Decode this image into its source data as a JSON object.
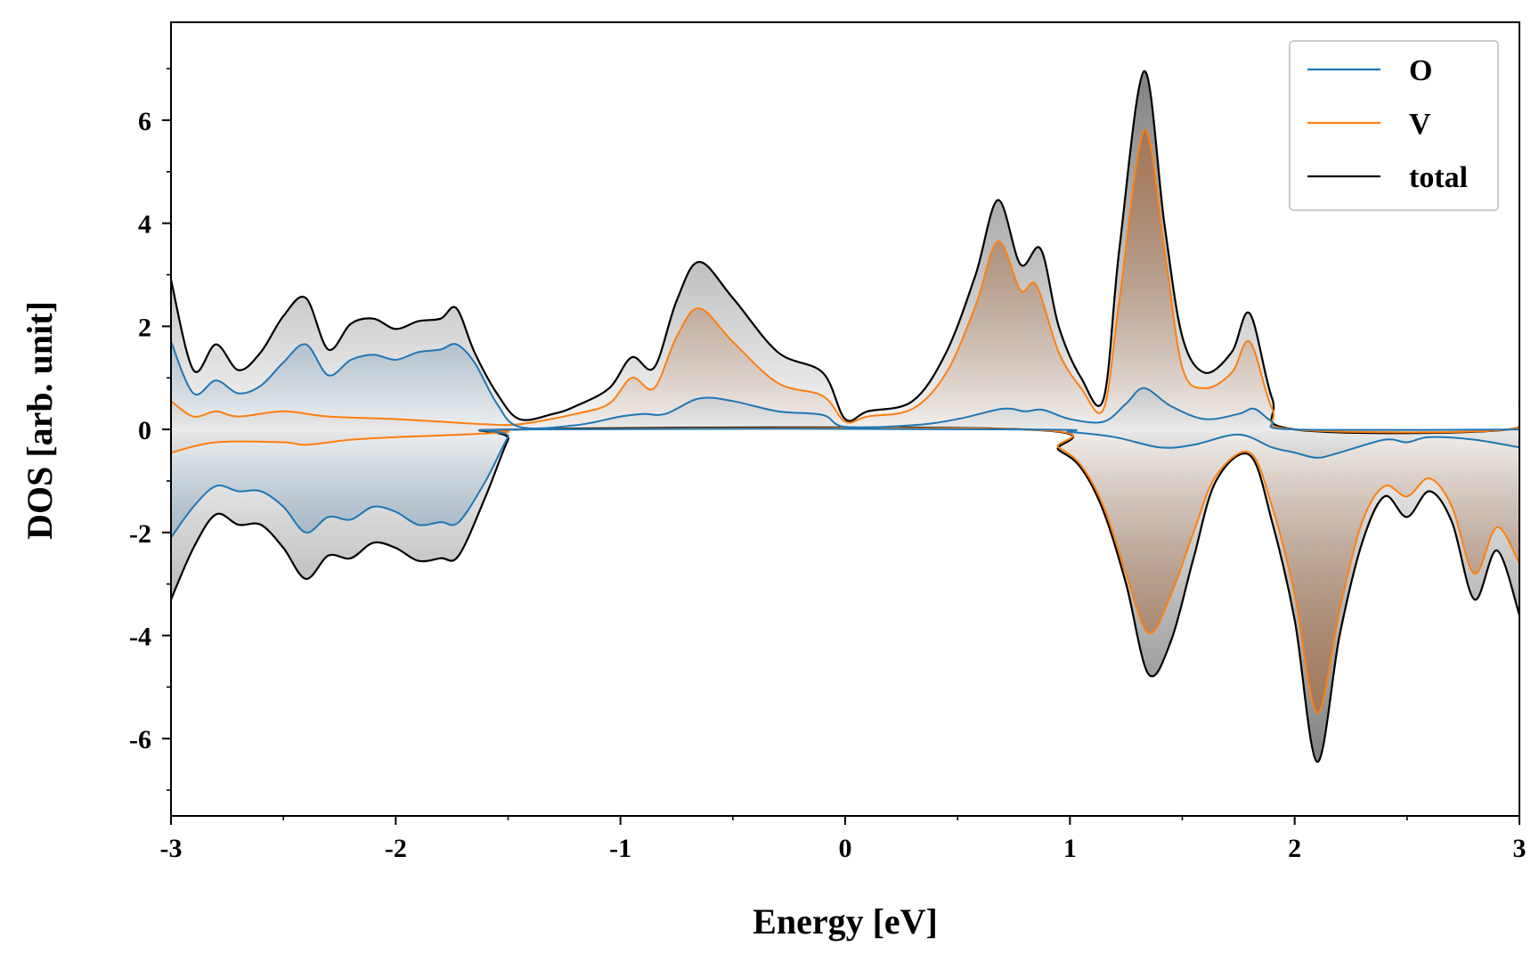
{
  "chart_data": {
    "type": "area",
    "xlabel": "Energy [eV]",
    "ylabel": "DOS [arb. unit]",
    "xlim": [
      -3,
      3
    ],
    "ylim": [
      -7.5,
      7.9
    ],
    "xticks": [
      -3,
      -2,
      -1,
      0,
      1,
      2,
      3
    ],
    "yticks": [
      -6,
      -4,
      -2,
      0,
      2,
      4,
      6
    ],
    "xtick_labels": [
      "-3",
      "-2",
      "-1",
      "0",
      "1",
      "2",
      "3"
    ],
    "ytick_labels": [
      "-6",
      "-4",
      "-2",
      "0",
      "2",
      "4",
      "6"
    ],
    "legend_position": "top-right",
    "grid": false,
    "series": [
      {
        "name": "O",
        "color": "#1f77b4",
        "fill_color": "#4a7fa8",
        "spin_up": [
          [
            -3.0,
            1.7
          ],
          [
            -2.9,
            0.7
          ],
          [
            -2.8,
            0.95
          ],
          [
            -2.7,
            0.7
          ],
          [
            -2.6,
            0.85
          ],
          [
            -2.5,
            1.3
          ],
          [
            -2.4,
            1.65
          ],
          [
            -2.3,
            1.05
          ],
          [
            -2.2,
            1.35
          ],
          [
            -2.1,
            1.45
          ],
          [
            -2.0,
            1.35
          ],
          [
            -1.9,
            1.5
          ],
          [
            -1.8,
            1.55
          ],
          [
            -1.73,
            1.65
          ],
          [
            -1.65,
            1.3
          ],
          [
            -1.55,
            0.5
          ],
          [
            -1.45,
            0.05
          ],
          [
            -1.2,
            0.08
          ],
          [
            -1.0,
            0.25
          ],
          [
            -0.9,
            0.3
          ],
          [
            -0.8,
            0.3
          ],
          [
            -0.65,
            0.6
          ],
          [
            -0.5,
            0.55
          ],
          [
            -0.3,
            0.35
          ],
          [
            -0.1,
            0.28
          ],
          [
            0.0,
            0.05
          ],
          [
            0.3,
            0.08
          ],
          [
            0.5,
            0.2
          ],
          [
            0.7,
            0.4
          ],
          [
            0.8,
            0.35
          ],
          [
            0.88,
            0.38
          ],
          [
            1.0,
            0.2
          ],
          [
            1.15,
            0.15
          ],
          [
            1.25,
            0.5
          ],
          [
            1.33,
            0.8
          ],
          [
            1.45,
            0.45
          ],
          [
            1.6,
            0.2
          ],
          [
            1.75,
            0.3
          ],
          [
            1.82,
            0.4
          ],
          [
            1.9,
            0.15
          ],
          [
            2.0,
            0.0
          ],
          [
            3.0,
            0.0
          ]
        ],
        "spin_down": [
          [
            -3.0,
            -2.1
          ],
          [
            -2.9,
            -1.5
          ],
          [
            -2.8,
            -1.1
          ],
          [
            -2.7,
            -1.2
          ],
          [
            -2.6,
            -1.2
          ],
          [
            -2.5,
            -1.5
          ],
          [
            -2.4,
            -2.0
          ],
          [
            -2.3,
            -1.7
          ],
          [
            -2.2,
            -1.75
          ],
          [
            -2.1,
            -1.5
          ],
          [
            -2.0,
            -1.6
          ],
          [
            -1.9,
            -1.85
          ],
          [
            -1.8,
            -1.8
          ],
          [
            -1.72,
            -1.8
          ],
          [
            -1.6,
            -1.0
          ],
          [
            -1.5,
            -0.15
          ],
          [
            -1.45,
            0.0
          ],
          [
            0.8,
            0.0
          ],
          [
            1.0,
            -0.05
          ],
          [
            1.2,
            -0.15
          ],
          [
            1.4,
            -0.35
          ],
          [
            1.55,
            -0.3
          ],
          [
            1.75,
            -0.1
          ],
          [
            1.9,
            -0.35
          ],
          [
            2.0,
            -0.45
          ],
          [
            2.1,
            -0.55
          ],
          [
            2.2,
            -0.45
          ],
          [
            2.4,
            -0.2
          ],
          [
            2.5,
            -0.25
          ],
          [
            2.6,
            -0.15
          ],
          [
            2.8,
            -0.2
          ],
          [
            3.0,
            -0.35
          ]
        ]
      },
      {
        "name": "V",
        "color": "#ff7f0e",
        "fill_color": "#a9704a",
        "spin_up": [
          [
            -3.0,
            0.55
          ],
          [
            -2.9,
            0.25
          ],
          [
            -2.8,
            0.35
          ],
          [
            -2.7,
            0.25
          ],
          [
            -2.5,
            0.35
          ],
          [
            -2.3,
            0.25
          ],
          [
            -2.0,
            0.2
          ],
          [
            -1.8,
            0.15
          ],
          [
            -1.6,
            0.1
          ],
          [
            -1.45,
            0.1
          ],
          [
            -1.2,
            0.3
          ],
          [
            -1.05,
            0.5
          ],
          [
            -0.95,
            1.0
          ],
          [
            -0.85,
            0.8
          ],
          [
            -0.75,
            1.8
          ],
          [
            -0.65,
            2.35
          ],
          [
            -0.5,
            1.7
          ],
          [
            -0.3,
            0.9
          ],
          [
            -0.1,
            0.65
          ],
          [
            0.0,
            0.15
          ],
          [
            0.1,
            0.25
          ],
          [
            0.3,
            0.4
          ],
          [
            0.45,
            1.1
          ],
          [
            0.58,
            2.4
          ],
          [
            0.68,
            3.65
          ],
          [
            0.78,
            2.7
          ],
          [
            0.85,
            2.8
          ],
          [
            0.95,
            1.5
          ],
          [
            1.05,
            0.8
          ],
          [
            1.15,
            0.4
          ],
          [
            1.22,
            2.5
          ],
          [
            1.33,
            5.8
          ],
          [
            1.42,
            3.5
          ],
          [
            1.5,
            1.2
          ],
          [
            1.6,
            0.8
          ],
          [
            1.72,
            1.1
          ],
          [
            1.8,
            1.7
          ],
          [
            1.9,
            0.4
          ],
          [
            2.0,
            0.0
          ],
          [
            2.95,
            0.0
          ],
          [
            3.0,
            0.5
          ]
        ],
        "spin_down": [
          [
            -3.0,
            -0.45
          ],
          [
            -2.8,
            -0.25
          ],
          [
            -2.5,
            -0.25
          ],
          [
            -2.4,
            -0.3
          ],
          [
            -2.2,
            -0.2
          ],
          [
            -2.0,
            -0.15
          ],
          [
            -1.7,
            -0.1
          ],
          [
            -1.5,
            -0.05
          ],
          [
            -1.45,
            0.0
          ],
          [
            0.8,
            0.0
          ],
          [
            0.95,
            -0.35
          ],
          [
            1.05,
            -0.7
          ],
          [
            1.15,
            -1.5
          ],
          [
            1.25,
            -2.8
          ],
          [
            1.35,
            -3.95
          ],
          [
            1.45,
            -3.2
          ],
          [
            1.55,
            -2.0
          ],
          [
            1.65,
            -0.9
          ],
          [
            1.8,
            -0.45
          ],
          [
            1.9,
            -1.5
          ],
          [
            2.0,
            -3.2
          ],
          [
            2.1,
            -5.5
          ],
          [
            2.2,
            -3.5
          ],
          [
            2.3,
            -1.8
          ],
          [
            2.4,
            -1.1
          ],
          [
            2.5,
            -1.3
          ],
          [
            2.6,
            -0.95
          ],
          [
            2.7,
            -1.5
          ],
          [
            2.8,
            -2.8
          ],
          [
            2.9,
            -1.9
          ],
          [
            3.0,
            -2.6
          ]
        ]
      },
      {
        "name": "total",
        "color": "#000000",
        "fill_color": "#555555",
        "spin_up": [
          [
            -3.0,
            2.9
          ],
          [
            -2.9,
            1.15
          ],
          [
            -2.8,
            1.65
          ],
          [
            -2.7,
            1.15
          ],
          [
            -2.6,
            1.5
          ],
          [
            -2.5,
            2.2
          ],
          [
            -2.4,
            2.55
          ],
          [
            -2.3,
            1.55
          ],
          [
            -2.2,
            2.05
          ],
          [
            -2.1,
            2.15
          ],
          [
            -2.0,
            1.95
          ],
          [
            -1.9,
            2.1
          ],
          [
            -1.8,
            2.15
          ],
          [
            -1.73,
            2.35
          ],
          [
            -1.65,
            1.5
          ],
          [
            -1.55,
            0.7
          ],
          [
            -1.45,
            0.2
          ],
          [
            -1.3,
            0.3
          ],
          [
            -1.2,
            0.45
          ],
          [
            -1.05,
            0.8
          ],
          [
            -0.95,
            1.4
          ],
          [
            -0.85,
            1.2
          ],
          [
            -0.75,
            2.5
          ],
          [
            -0.65,
            3.25
          ],
          [
            -0.5,
            2.55
          ],
          [
            -0.3,
            1.5
          ],
          [
            -0.1,
            1.1
          ],
          [
            0.0,
            0.2
          ],
          [
            0.1,
            0.35
          ],
          [
            0.3,
            0.55
          ],
          [
            0.45,
            1.5
          ],
          [
            0.58,
            3.0
          ],
          [
            0.68,
            4.45
          ],
          [
            0.78,
            3.2
          ],
          [
            0.87,
            3.5
          ],
          [
            0.95,
            2.0
          ],
          [
            1.05,
            1.0
          ],
          [
            1.15,
            0.6
          ],
          [
            1.22,
            3.5
          ],
          [
            1.33,
            6.95
          ],
          [
            1.42,
            4.0
          ],
          [
            1.5,
            1.8
          ],
          [
            1.6,
            1.1
          ],
          [
            1.72,
            1.5
          ],
          [
            1.8,
            2.25
          ],
          [
            1.9,
            0.6
          ],
          [
            2.0,
            0.0
          ],
          [
            2.95,
            0.0
          ],
          [
            3.0,
            0.55
          ]
        ],
        "spin_down": [
          [
            -3.0,
            -3.3
          ],
          [
            -2.9,
            -2.3
          ],
          [
            -2.8,
            -1.65
          ],
          [
            -2.7,
            -1.85
          ],
          [
            -2.6,
            -1.85
          ],
          [
            -2.5,
            -2.3
          ],
          [
            -2.4,
            -2.9
          ],
          [
            -2.3,
            -2.45
          ],
          [
            -2.2,
            -2.5
          ],
          [
            -2.1,
            -2.2
          ],
          [
            -2.0,
            -2.3
          ],
          [
            -1.9,
            -2.55
          ],
          [
            -1.8,
            -2.5
          ],
          [
            -1.72,
            -2.45
          ],
          [
            -1.6,
            -1.3
          ],
          [
            -1.5,
            -0.2
          ],
          [
            -1.45,
            0.0
          ],
          [
            0.8,
            0.0
          ],
          [
            0.95,
            -0.4
          ],
          [
            1.05,
            -0.75
          ],
          [
            1.15,
            -1.6
          ],
          [
            1.25,
            -3.0
          ],
          [
            1.35,
            -4.75
          ],
          [
            1.45,
            -4.1
          ],
          [
            1.55,
            -2.5
          ],
          [
            1.65,
            -1.0
          ],
          [
            1.8,
            -0.5
          ],
          [
            1.9,
            -1.8
          ],
          [
            2.0,
            -3.7
          ],
          [
            2.1,
            -6.45
          ],
          [
            2.2,
            -4.0
          ],
          [
            2.3,
            -2.2
          ],
          [
            2.4,
            -1.3
          ],
          [
            2.5,
            -1.7
          ],
          [
            2.6,
            -1.2
          ],
          [
            2.7,
            -1.8
          ],
          [
            2.8,
            -3.3
          ],
          [
            2.9,
            -2.35
          ],
          [
            3.0,
            -3.6
          ]
        ]
      }
    ]
  }
}
